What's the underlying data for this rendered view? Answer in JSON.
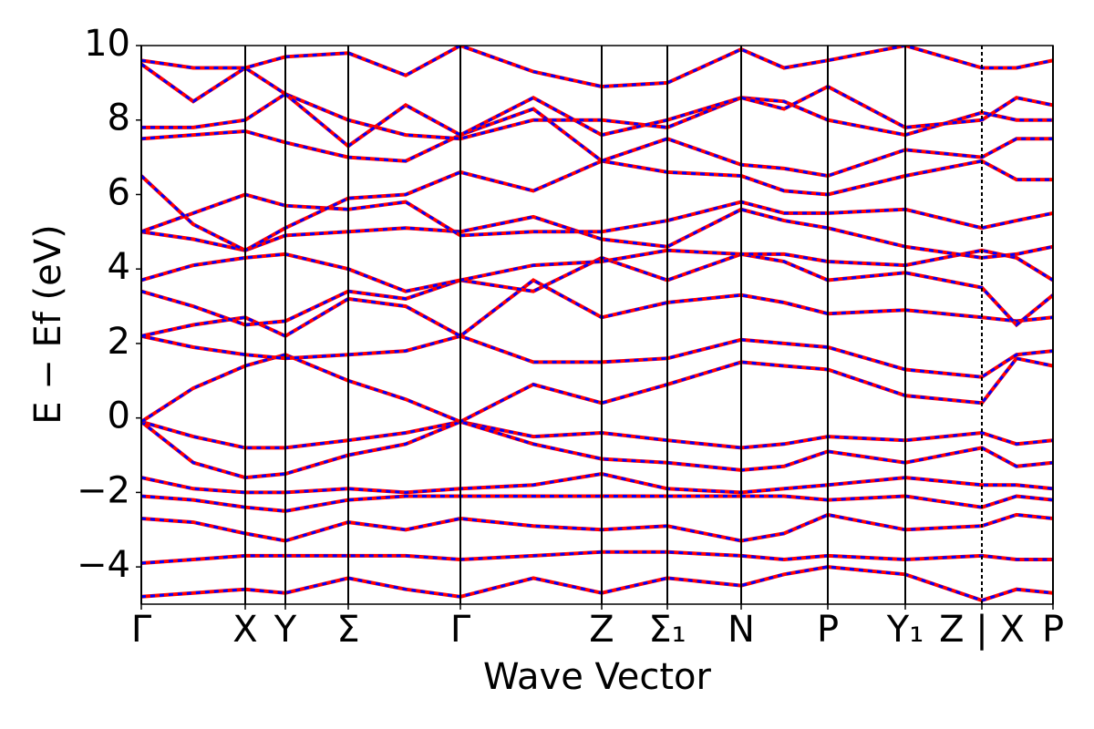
{
  "chart_data": {
    "type": "line",
    "xlabel": "Wave Vector",
    "ylabel": "E − Ef (eV)",
    "xlim": [
      0,
      1
    ],
    "ylim": [
      -5,
      10
    ],
    "xticks": [
      {
        "value": 0,
        "label": "Γ"
      },
      {
        "value": 0.114,
        "label": "X"
      },
      {
        "value": 0.158,
        "label": "Y"
      },
      {
        "value": 0.227,
        "label": "Σ"
      },
      {
        "value": 0.35,
        "label": "Γ"
      },
      {
        "value": 0.505,
        "label": "Z"
      },
      {
        "value": 0.577,
        "label": "Σ₁"
      },
      {
        "value": 0.658,
        "label": "N"
      },
      {
        "value": 0.753,
        "label": "P"
      },
      {
        "value": 0.838,
        "label": "Y₁"
      },
      {
        "value": 0.922,
        "label": "Z | X"
      },
      {
        "value": 1,
        "label": "P"
      }
    ],
    "yticks": [
      {
        "value": -4,
        "label": "−4"
      },
      {
        "value": -2,
        "label": "−2"
      },
      0,
      2,
      4,
      6,
      8,
      10
    ],
    "line_color": "#ff0000",
    "dash_color": "#0000ff",
    "x": [
      0,
      0.057,
      0.114,
      0.158,
      0.227,
      0.29,
      0.35,
      0.43,
      0.505,
      0.577,
      0.658,
      0.705,
      0.753,
      0.838,
      0.922,
      0.96,
      1
    ],
    "series": [
      {
        "values": [
          -4.8,
          -4.7,
          -4.6,
          -4.7,
          -4.3,
          -4.6,
          -4.8,
          -4.3,
          -4.7,
          -4.3,
          -4.5,
          -4.2,
          -4.0,
          -4.2,
          -4.9,
          -4.6,
          -4.7
        ]
      },
      {
        "values": [
          -3.9,
          -3.8,
          -3.7,
          -3.7,
          -3.7,
          -3.7,
          -3.8,
          -3.7,
          -3.6,
          -3.6,
          -3.7,
          -3.8,
          -3.7,
          -3.8,
          -3.7,
          -3.8,
          -3.8
        ]
      },
      {
        "values": [
          -2.7,
          -2.8,
          -3.1,
          -3.3,
          -2.8,
          -3.0,
          -2.7,
          -2.9,
          -3.0,
          -2.9,
          -3.3,
          -3.1,
          -2.6,
          -3.0,
          -2.9,
          -2.6,
          -2.7
        ]
      },
      {
        "values": [
          -2.1,
          -2.2,
          -2.4,
          -2.5,
          -2.2,
          -2.1,
          -2.1,
          -2.1,
          -2.1,
          -2.1,
          -2.1,
          -2.1,
          -2.2,
          -2.1,
          -2.4,
          -2.1,
          -2.2
        ]
      },
      {
        "values": [
          -1.6,
          -1.9,
          -2.0,
          -2.0,
          -1.9,
          -2.0,
          -1.9,
          -1.8,
          -1.5,
          -1.9,
          -2.0,
          -1.9,
          -1.8,
          -1.6,
          -1.8,
          -1.8,
          -1.9
        ]
      },
      {
        "values": [
          -0.1,
          -0.5,
          -0.8,
          -0.8,
          -0.6,
          -0.4,
          -0.1,
          -0.5,
          -0.4,
          -0.6,
          -0.8,
          -0.7,
          -0.5,
          -0.6,
          -0.4,
          -0.7,
          -0.6
        ]
      },
      {
        "values": [
          -0.1,
          -1.2,
          -1.6,
          -1.5,
          -1.0,
          -0.7,
          -0.1,
          -0.7,
          -1.1,
          -1.2,
          -1.4,
          -1.3,
          -0.9,
          -1.2,
          -0.8,
          -1.3,
          -1.2
        ]
      },
      {
        "values": [
          -0.1,
          0.8,
          1.4,
          1.7,
          1.0,
          0.5,
          -0.1,
          0.9,
          0.4,
          0.9,
          1.5,
          1.4,
          1.3,
          0.6,
          0.4,
          1.6,
          1.4
        ]
      },
      {
        "values": [
          2.2,
          1.9,
          1.7,
          1.6,
          1.7,
          1.8,
          2.2,
          1.5,
          1.5,
          1.6,
          2.1,
          2.0,
          1.9,
          1.3,
          1.1,
          1.7,
          1.8
        ]
      },
      {
        "values": [
          2.2,
          2.5,
          2.7,
          2.2,
          3.2,
          3.0,
          2.2,
          3.7,
          2.7,
          3.1,
          3.3,
          3.1,
          2.8,
          2.9,
          2.7,
          2.6,
          2.7
        ]
      },
      {
        "values": [
          3.4,
          3.0,
          2.5,
          2.6,
          3.4,
          3.2,
          3.7,
          3.4,
          4.3,
          3.7,
          4.4,
          4.2,
          3.7,
          3.9,
          3.5,
          2.5,
          3.3
        ]
      },
      {
        "values": [
          3.7,
          4.1,
          4.3,
          4.4,
          4.0,
          3.4,
          3.7,
          4.1,
          4.2,
          4.5,
          4.4,
          4.4,
          4.2,
          4.1,
          4.5,
          4.3,
          3.7
        ]
      },
      {
        "values": [
          5.0,
          4.8,
          4.5,
          4.9,
          5.0,
          5.1,
          5.0,
          5.4,
          4.8,
          4.6,
          5.6,
          5.3,
          5.1,
          4.6,
          4.3,
          4.4,
          4.6
        ]
      },
      {
        "values": [
          5.0,
          5.5,
          6.0,
          5.7,
          5.6,
          5.8,
          4.9,
          5.0,
          5.0,
          5.3,
          5.8,
          5.5,
          5.5,
          5.6,
          5.1,
          5.3,
          5.5
        ]
      },
      {
        "values": [
          6.5,
          5.2,
          4.5,
          5.1,
          5.9,
          6.0,
          6.6,
          6.1,
          6.9,
          6.6,
          6.5,
          6.1,
          6.0,
          6.5,
          6.9,
          6.4,
          6.4
        ]
      },
      {
        "values": [
          7.5,
          7.6,
          7.7,
          7.4,
          7.0,
          6.9,
          7.6,
          8.3,
          6.9,
          7.5,
          6.8,
          6.7,
          6.5,
          7.2,
          7.0,
          7.5,
          7.5
        ]
      },
      {
        "values": [
          7.8,
          7.8,
          8.0,
          8.7,
          8.0,
          7.6,
          7.5,
          8.0,
          8.0,
          7.8,
          8.6,
          8.5,
          8.0,
          7.6,
          8.2,
          8.0,
          8.0
        ]
      },
      {
        "values": [
          9.5,
          8.5,
          9.4,
          8.7,
          7.3,
          8.4,
          7.6,
          8.6,
          7.6,
          8.0,
          8.6,
          8.3,
          8.9,
          7.8,
          8.0,
          8.6,
          8.4
        ]
      },
      {
        "values": [
          9.6,
          9.4,
          9.4,
          9.7,
          9.8,
          9.2,
          10.0,
          9.3,
          8.9,
          9.0,
          9.9,
          9.4,
          9.6,
          10.0,
          9.4,
          9.4,
          9.6
        ]
      }
    ]
  }
}
